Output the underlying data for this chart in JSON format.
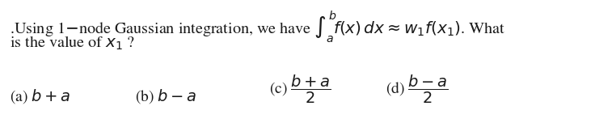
{
  "background_color": "#ffffff",
  "text_color": "#1a1a1a",
  "line1_text": ".Using 1 – node Gaussian integration, we have ",
  "line1_math": "$\\int_a^b\\!f(x)\\,dx \\approx w_1 f(x_1)$. What",
  "line2": "is the value of $x_1$ ?",
  "opt_a": "(a) $b + a$",
  "opt_b": "(b) $b - a$",
  "opt_c": "(c) $\\dfrac{b+a}{2}$",
  "opt_d": "(d) $\\dfrac{b-a}{2}$",
  "fontsize_main": 14.5,
  "fontsize_opts": 14.0,
  "fig_width": 7.57,
  "fig_height": 1.52,
  "dpi": 100
}
